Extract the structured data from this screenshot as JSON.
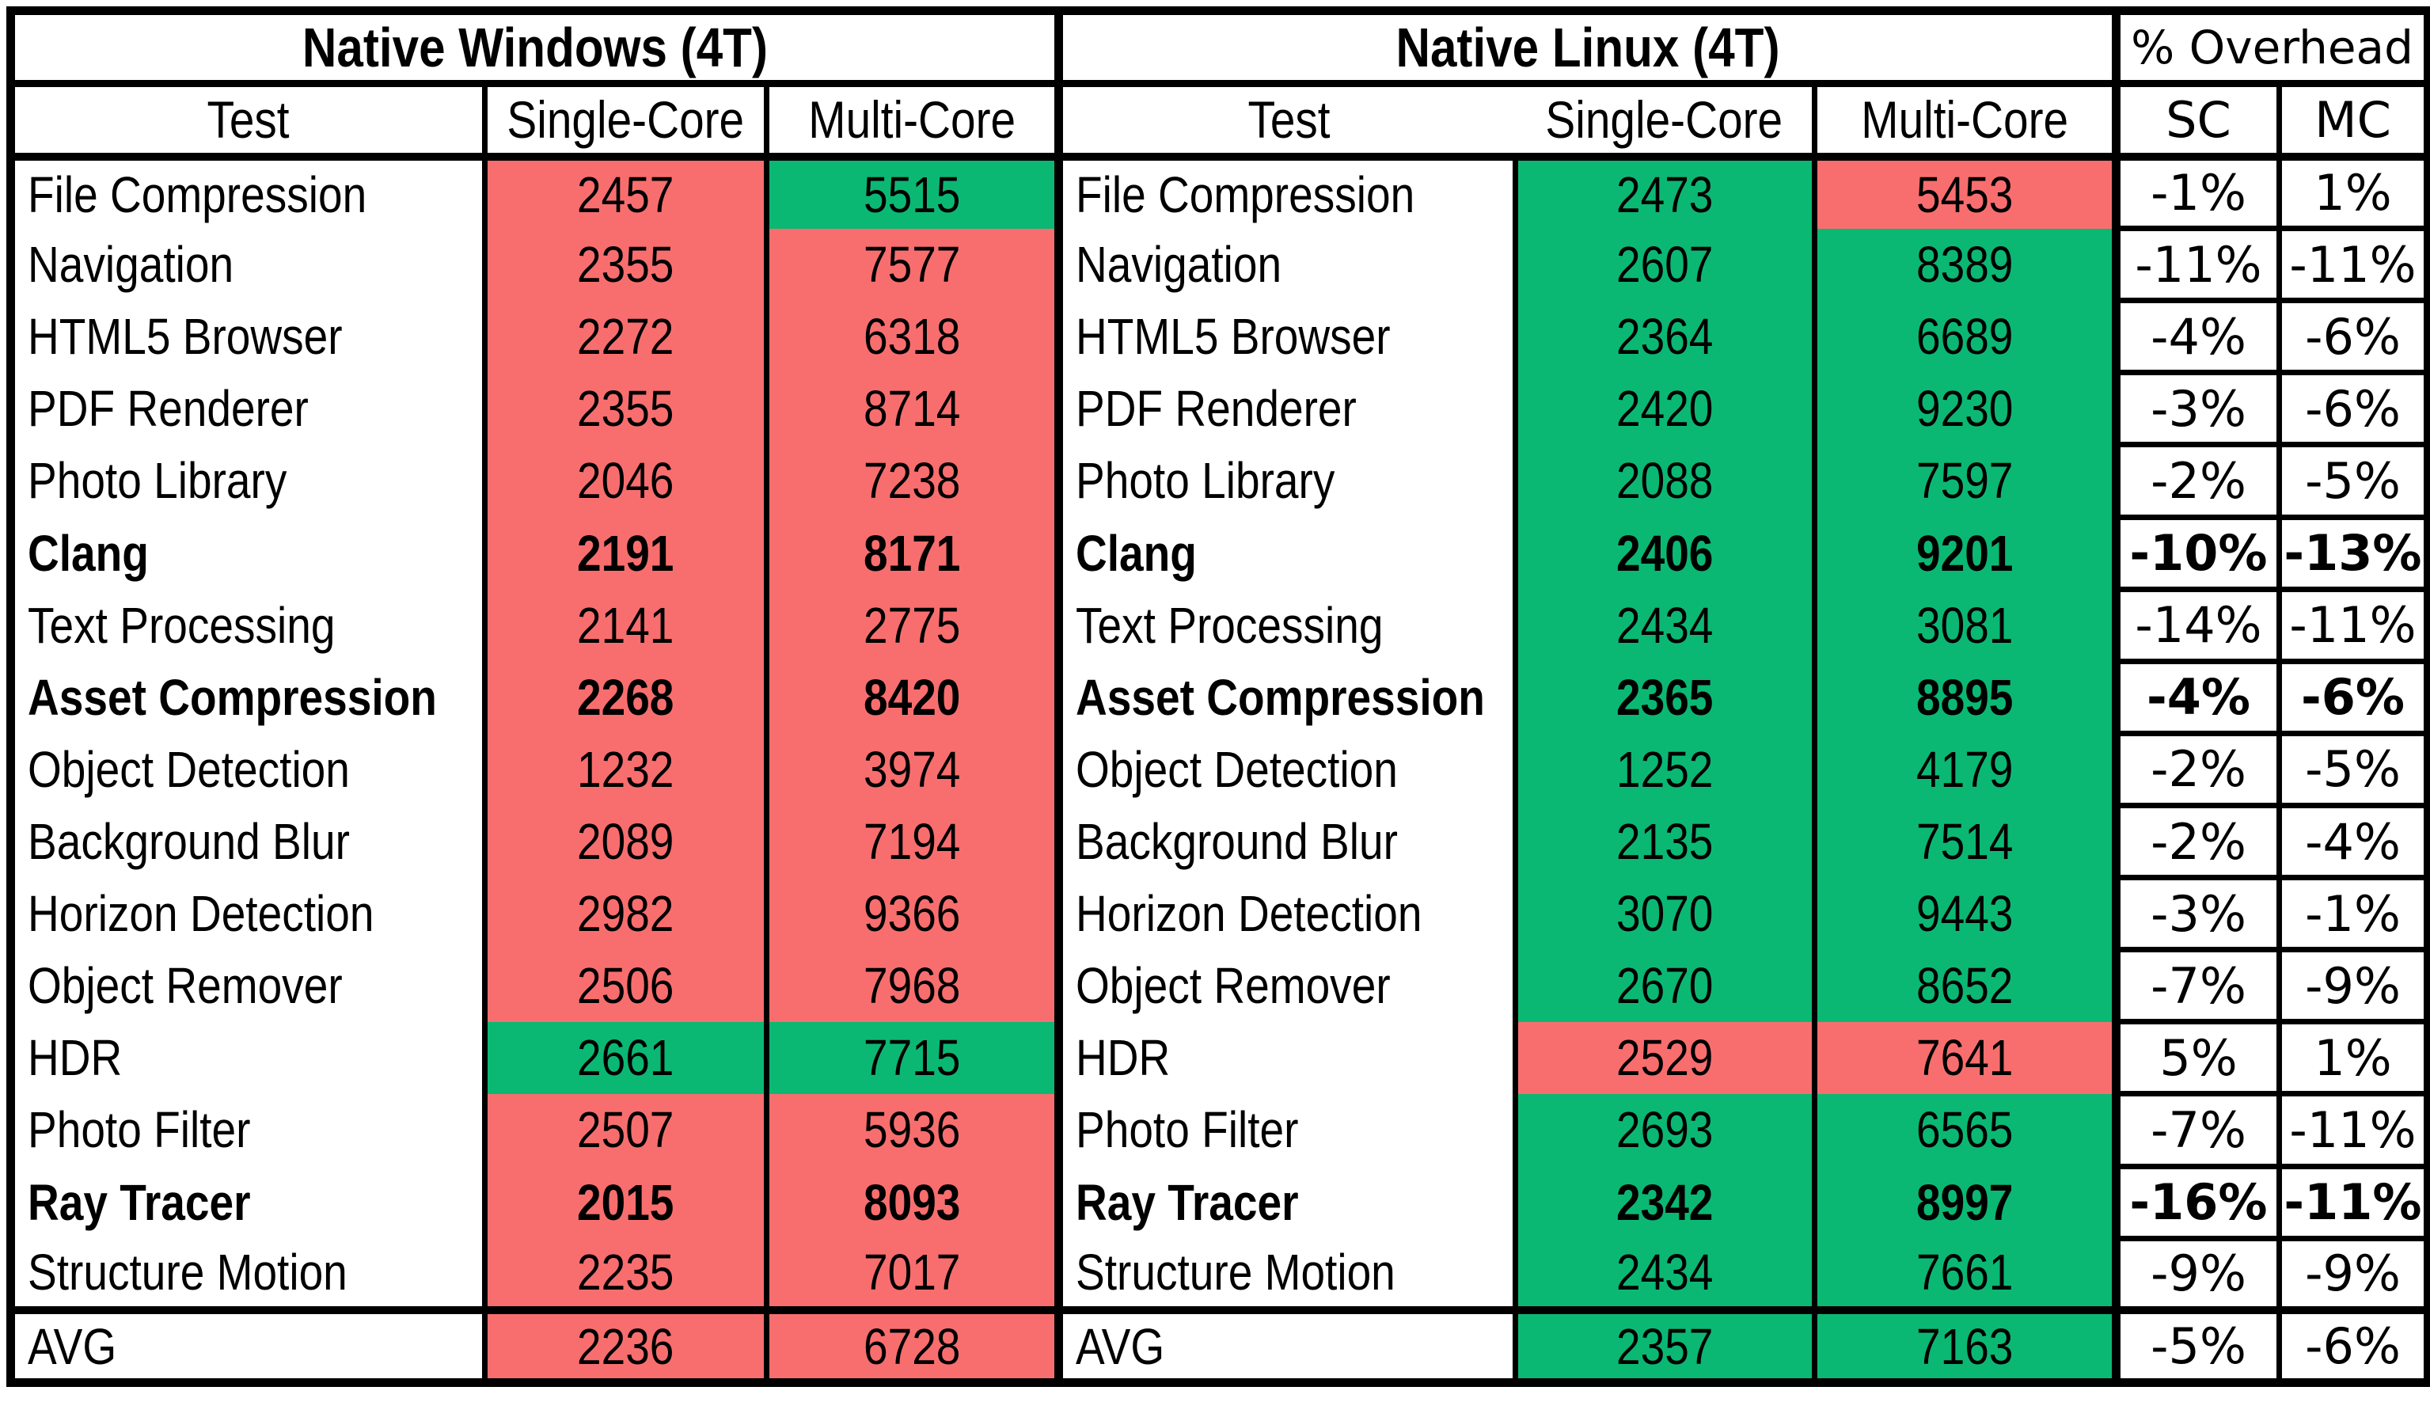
{
  "header": {
    "windows_title": "Native Windows (4T)",
    "linux_title": "Native Linux (4T)",
    "overhead_title": "% Overhead",
    "col_test": "Test",
    "col_single": "Single-Core",
    "col_multi": "Multi-Core",
    "col_sc": "SC",
    "col_mc": "MC"
  },
  "colors": {
    "better": "#0bb873",
    "worse": "#f86e6e",
    "border": "#000000",
    "background": "#ffffff"
  },
  "rows": [
    {
      "test": "File Compression",
      "bold": false,
      "win_sc": "2457",
      "win_mc": "5515",
      "win_sc_color": "red",
      "win_mc_color": "green",
      "linux_sc": "2473",
      "linux_mc": "5453",
      "linux_sc_color": "green",
      "linux_mc_color": "red",
      "oh_sc": "-1%",
      "oh_mc": "1%"
    },
    {
      "test": "Navigation",
      "bold": false,
      "win_sc": "2355",
      "win_mc": "7577",
      "win_sc_color": "red",
      "win_mc_color": "red",
      "linux_sc": "2607",
      "linux_mc": "8389",
      "linux_sc_color": "green",
      "linux_mc_color": "green",
      "oh_sc": "-11%",
      "oh_mc": "-11%"
    },
    {
      "test": "HTML5 Browser",
      "bold": false,
      "win_sc": "2272",
      "win_mc": "6318",
      "win_sc_color": "red",
      "win_mc_color": "red",
      "linux_sc": "2364",
      "linux_mc": "6689",
      "linux_sc_color": "green",
      "linux_mc_color": "green",
      "oh_sc": "-4%",
      "oh_mc": "-6%"
    },
    {
      "test": "PDF Renderer",
      "bold": false,
      "win_sc": "2355",
      "win_mc": "8714",
      "win_sc_color": "red",
      "win_mc_color": "red",
      "linux_sc": "2420",
      "linux_mc": "9230",
      "linux_sc_color": "green",
      "linux_mc_color": "green",
      "oh_sc": "-3%",
      "oh_mc": "-6%"
    },
    {
      "test": "Photo Library",
      "bold": false,
      "win_sc": "2046",
      "win_mc": "7238",
      "win_sc_color": "red",
      "win_mc_color": "red",
      "linux_sc": "2088",
      "linux_mc": "7597",
      "linux_sc_color": "green",
      "linux_mc_color": "green",
      "oh_sc": "-2%",
      "oh_mc": "-5%"
    },
    {
      "test": "Clang",
      "bold": true,
      "win_sc": "2191",
      "win_mc": "8171",
      "win_sc_color": "red",
      "win_mc_color": "red",
      "linux_sc": "2406",
      "linux_mc": "9201",
      "linux_sc_color": "green",
      "linux_mc_color": "green",
      "oh_sc": "-10%",
      "oh_mc": "-13%"
    },
    {
      "test": "Text Processing",
      "bold": false,
      "win_sc": "2141",
      "win_mc": "2775",
      "win_sc_color": "red",
      "win_mc_color": "red",
      "linux_sc": "2434",
      "linux_mc": "3081",
      "linux_sc_color": "green",
      "linux_mc_color": "green",
      "oh_sc": "-14%",
      "oh_mc": "-11%"
    },
    {
      "test": "Asset Compression",
      "bold": true,
      "win_sc": "2268",
      "win_mc": "8420",
      "win_sc_color": "red",
      "win_mc_color": "red",
      "linux_sc": "2365",
      "linux_mc": "8895",
      "linux_sc_color": "green",
      "linux_mc_color": "green",
      "oh_sc": "-4%",
      "oh_mc": "-6%"
    },
    {
      "test": "Object Detection",
      "bold": false,
      "win_sc": "1232",
      "win_mc": "3974",
      "win_sc_color": "red",
      "win_mc_color": "red",
      "linux_sc": "1252",
      "linux_mc": "4179",
      "linux_sc_color": "green",
      "linux_mc_color": "green",
      "oh_sc": "-2%",
      "oh_mc": "-5%"
    },
    {
      "test": "Background Blur",
      "bold": false,
      "win_sc": "2089",
      "win_mc": "7194",
      "win_sc_color": "red",
      "win_mc_color": "red",
      "linux_sc": "2135",
      "linux_mc": "7514",
      "linux_sc_color": "green",
      "linux_mc_color": "green",
      "oh_sc": "-2%",
      "oh_mc": "-4%"
    },
    {
      "test": "Horizon Detection",
      "bold": false,
      "win_sc": "2982",
      "win_mc": "9366",
      "win_sc_color": "red",
      "win_mc_color": "red",
      "linux_sc": "3070",
      "linux_mc": "9443",
      "linux_sc_color": "green",
      "linux_mc_color": "green",
      "oh_sc": "-3%",
      "oh_mc": "-1%"
    },
    {
      "test": "Object Remover",
      "bold": false,
      "win_sc": "2506",
      "win_mc": "7968",
      "win_sc_color": "red",
      "win_mc_color": "red",
      "linux_sc": "2670",
      "linux_mc": "8652",
      "linux_sc_color": "green",
      "linux_mc_color": "green",
      "oh_sc": "-7%",
      "oh_mc": "-9%"
    },
    {
      "test": "HDR",
      "bold": false,
      "win_sc": "2661",
      "win_mc": "7715",
      "win_sc_color": "green",
      "win_mc_color": "green",
      "linux_sc": "2529",
      "linux_mc": "7641",
      "linux_sc_color": "red",
      "linux_mc_color": "red",
      "oh_sc": "5%",
      "oh_mc": "1%"
    },
    {
      "test": "Photo Filter",
      "bold": false,
      "win_sc": "2507",
      "win_mc": "5936",
      "win_sc_color": "red",
      "win_mc_color": "red",
      "linux_sc": "2693",
      "linux_mc": "6565",
      "linux_sc_color": "green",
      "linux_mc_color": "green",
      "oh_sc": "-7%",
      "oh_mc": "-11%"
    },
    {
      "test": "Ray Tracer",
      "bold": true,
      "win_sc": "2015",
      "win_mc": "8093",
      "win_sc_color": "red",
      "win_mc_color": "red",
      "linux_sc": "2342",
      "linux_mc": "8997",
      "linux_sc_color": "green",
      "linux_mc_color": "green",
      "oh_sc": "-16%",
      "oh_mc": "-11%"
    },
    {
      "test": "Structure Motion",
      "bold": false,
      "win_sc": "2235",
      "win_mc": "7017",
      "win_sc_color": "red",
      "win_mc_color": "red",
      "linux_sc": "2434",
      "linux_mc": "7661",
      "linux_sc_color": "green",
      "linux_mc_color": "green",
      "oh_sc": "-9%",
      "oh_mc": "-9%"
    }
  ],
  "avg": {
    "test": "AVG",
    "bold": false,
    "win_sc": "2236",
    "win_mc": "6728",
    "win_sc_color": "red",
    "win_mc_color": "red",
    "linux_sc": "2357",
    "linux_mc": "7163",
    "linux_sc_color": "green",
    "linux_mc_color": "green",
    "oh_sc": "-5%",
    "oh_mc": "-6%"
  },
  "chart_data": {
    "type": "table",
    "title": "Native Windows (4T) vs Native Linux (4T) benchmark scores with % Overhead",
    "categories": [
      "File Compression",
      "Navigation",
      "HTML5 Browser",
      "PDF Renderer",
      "Photo Library",
      "Clang",
      "Text Processing",
      "Asset Compression",
      "Object Detection",
      "Background Blur",
      "Horizon Detection",
      "Object Remover",
      "HDR",
      "Photo Filter",
      "Ray Tracer",
      "Structure Motion",
      "AVG"
    ],
    "series": [
      {
        "name": "Windows Single-Core",
        "values": [
          2457,
          2355,
          2272,
          2355,
          2046,
          2191,
          2141,
          2268,
          1232,
          2089,
          2982,
          2506,
          2661,
          2507,
          2015,
          2235,
          2236
        ]
      },
      {
        "name": "Windows Multi-Core",
        "values": [
          5515,
          7577,
          6318,
          8714,
          7238,
          8171,
          2775,
          8420,
          3974,
          7194,
          9366,
          7968,
          7715,
          5936,
          8093,
          7017,
          6728
        ]
      },
      {
        "name": "Linux Single-Core",
        "values": [
          2473,
          2607,
          2364,
          2420,
          2088,
          2406,
          2434,
          2365,
          1252,
          2135,
          3070,
          2670,
          2529,
          2693,
          2342,
          2434,
          2357
        ]
      },
      {
        "name": "Linux Multi-Core",
        "values": [
          5453,
          8389,
          6689,
          9230,
          7597,
          9201,
          3081,
          8895,
          4179,
          7514,
          9443,
          8652,
          7641,
          6565,
          8997,
          7661,
          7163
        ]
      },
      {
        "name": "% Overhead SC",
        "values": [
          -1,
          -11,
          -4,
          -3,
          -2,
          -10,
          -14,
          -4,
          -2,
          -2,
          -3,
          -7,
          5,
          -7,
          -16,
          -9,
          -5
        ]
      },
      {
        "name": "% Overhead MC",
        "values": [
          1,
          -11,
          -6,
          -6,
          -5,
          -13,
          -11,
          -6,
          -5,
          -4,
          -1,
          -9,
          1,
          -11,
          -11,
          -9,
          -6
        ]
      }
    ],
    "legend_note": "green fill = higher (better) score of the two OSes; red fill = lower score; bold rows: Clang, Asset Compression, Ray Tracer"
  }
}
